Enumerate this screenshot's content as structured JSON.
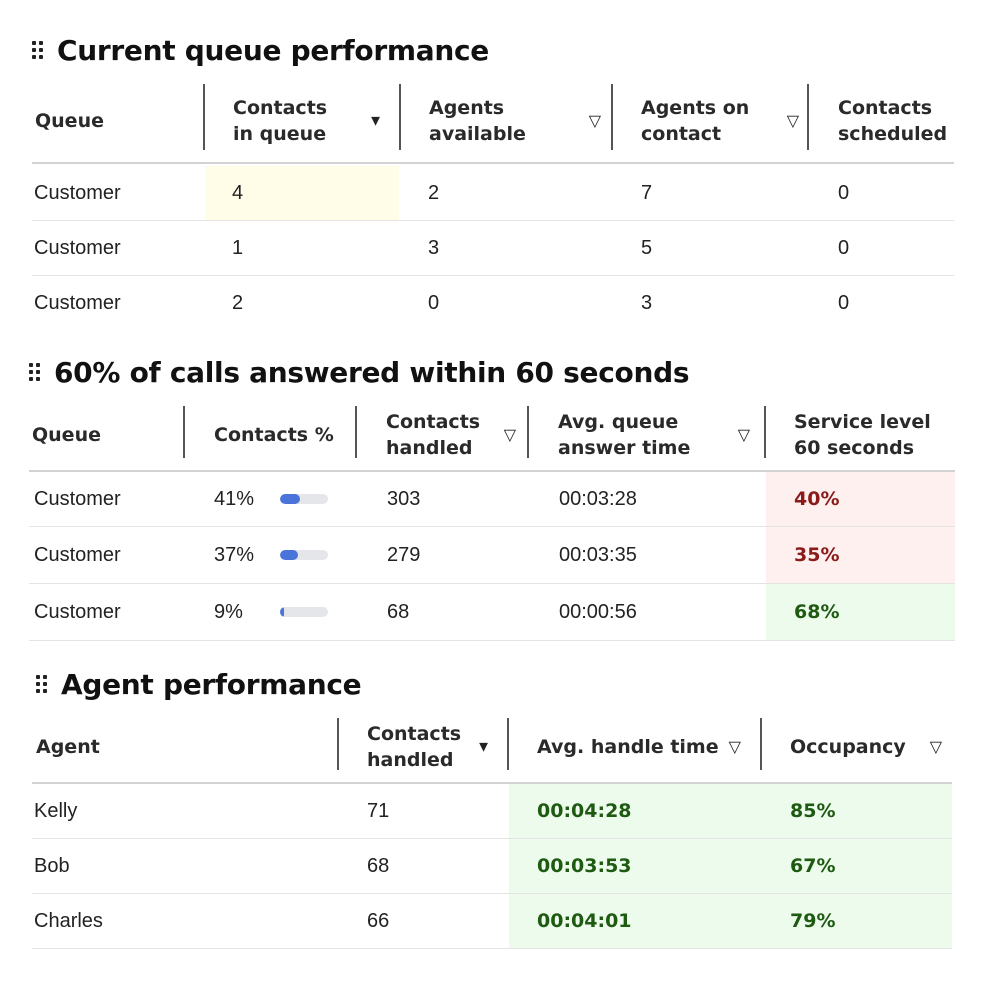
{
  "queue_performance": {
    "title": "Current queue performance",
    "columns": [
      {
        "label": "Queue",
        "sort": ""
      },
      {
        "label": "Contacts in queue",
        "sort": "▼"
      },
      {
        "label": "Agents available",
        "sort": "▽"
      },
      {
        "label": "Agents on contact",
        "sort": "▽"
      },
      {
        "label": "Contacts scheduled",
        "sort": ""
      }
    ],
    "rows": [
      [
        "Customer",
        "4",
        "2",
        "7",
        "0"
      ],
      [
        "Customer",
        "1",
        "3",
        "5",
        "0"
      ],
      [
        "Customer",
        "2",
        "0",
        "3",
        "0"
      ]
    ],
    "highlight_color": "#fffde8"
  },
  "service_level": {
    "title": "60% of calls answered within 60 seconds",
    "columns": [
      {
        "label": "Queue",
        "sort": ""
      },
      {
        "label": "Contacts %",
        "sort": ""
      },
      {
        "label": "Contacts handled",
        "sort": "▽"
      },
      {
        "label": "Avg. queue answer time",
        "sort": "▽"
      },
      {
        "label": "Service level 60 seconds",
        "sort": ""
      }
    ],
    "rows": [
      {
        "queue": "Customer",
        "pct": "41%",
        "pct_value": 0.41,
        "handled": "303",
        "answer_time": "00:03:28",
        "service_level": "40%",
        "status": "bad"
      },
      {
        "queue": "Customer",
        "pct": "37%",
        "pct_value": 0.37,
        "handled": "279",
        "answer_time": "00:03:35",
        "service_level": "35%",
        "status": "bad"
      },
      {
        "queue": "Customer",
        "pct": "9%",
        "pct_value": 0.09,
        "handled": "68",
        "answer_time": "00:00:56",
        "service_level": "68%",
        "status": "good"
      }
    ],
    "colors": {
      "bad_bg": "#fdf0ee",
      "bad_text": "#8b1a1a",
      "good_bg": "#edfbec",
      "good_text": "#1e5a12",
      "bar": "#4a74d9",
      "track": "#e4e6ea"
    }
  },
  "agent_performance": {
    "title": "Agent performance",
    "columns": [
      {
        "label": "Agent",
        "sort": ""
      },
      {
        "label": "Contacts handled",
        "sort": "▼"
      },
      {
        "label": "Avg. handle time",
        "sort": "▽"
      },
      {
        "label": "Occupancy",
        "sort": "▽"
      }
    ],
    "rows": [
      {
        "agent": "Kelly",
        "handled": "71",
        "handle_time": "00:04:28",
        "occupancy": "85%"
      },
      {
        "agent": "Bob",
        "handled": "68",
        "handle_time": "00:03:53",
        "occupancy": "67%"
      },
      {
        "agent": "Charles",
        "handled": "66",
        "handle_time": "00:04:01",
        "occupancy": "79%"
      }
    ],
    "colors": {
      "good_bg": "#edfbec",
      "good_text": "#1e5a12"
    }
  }
}
